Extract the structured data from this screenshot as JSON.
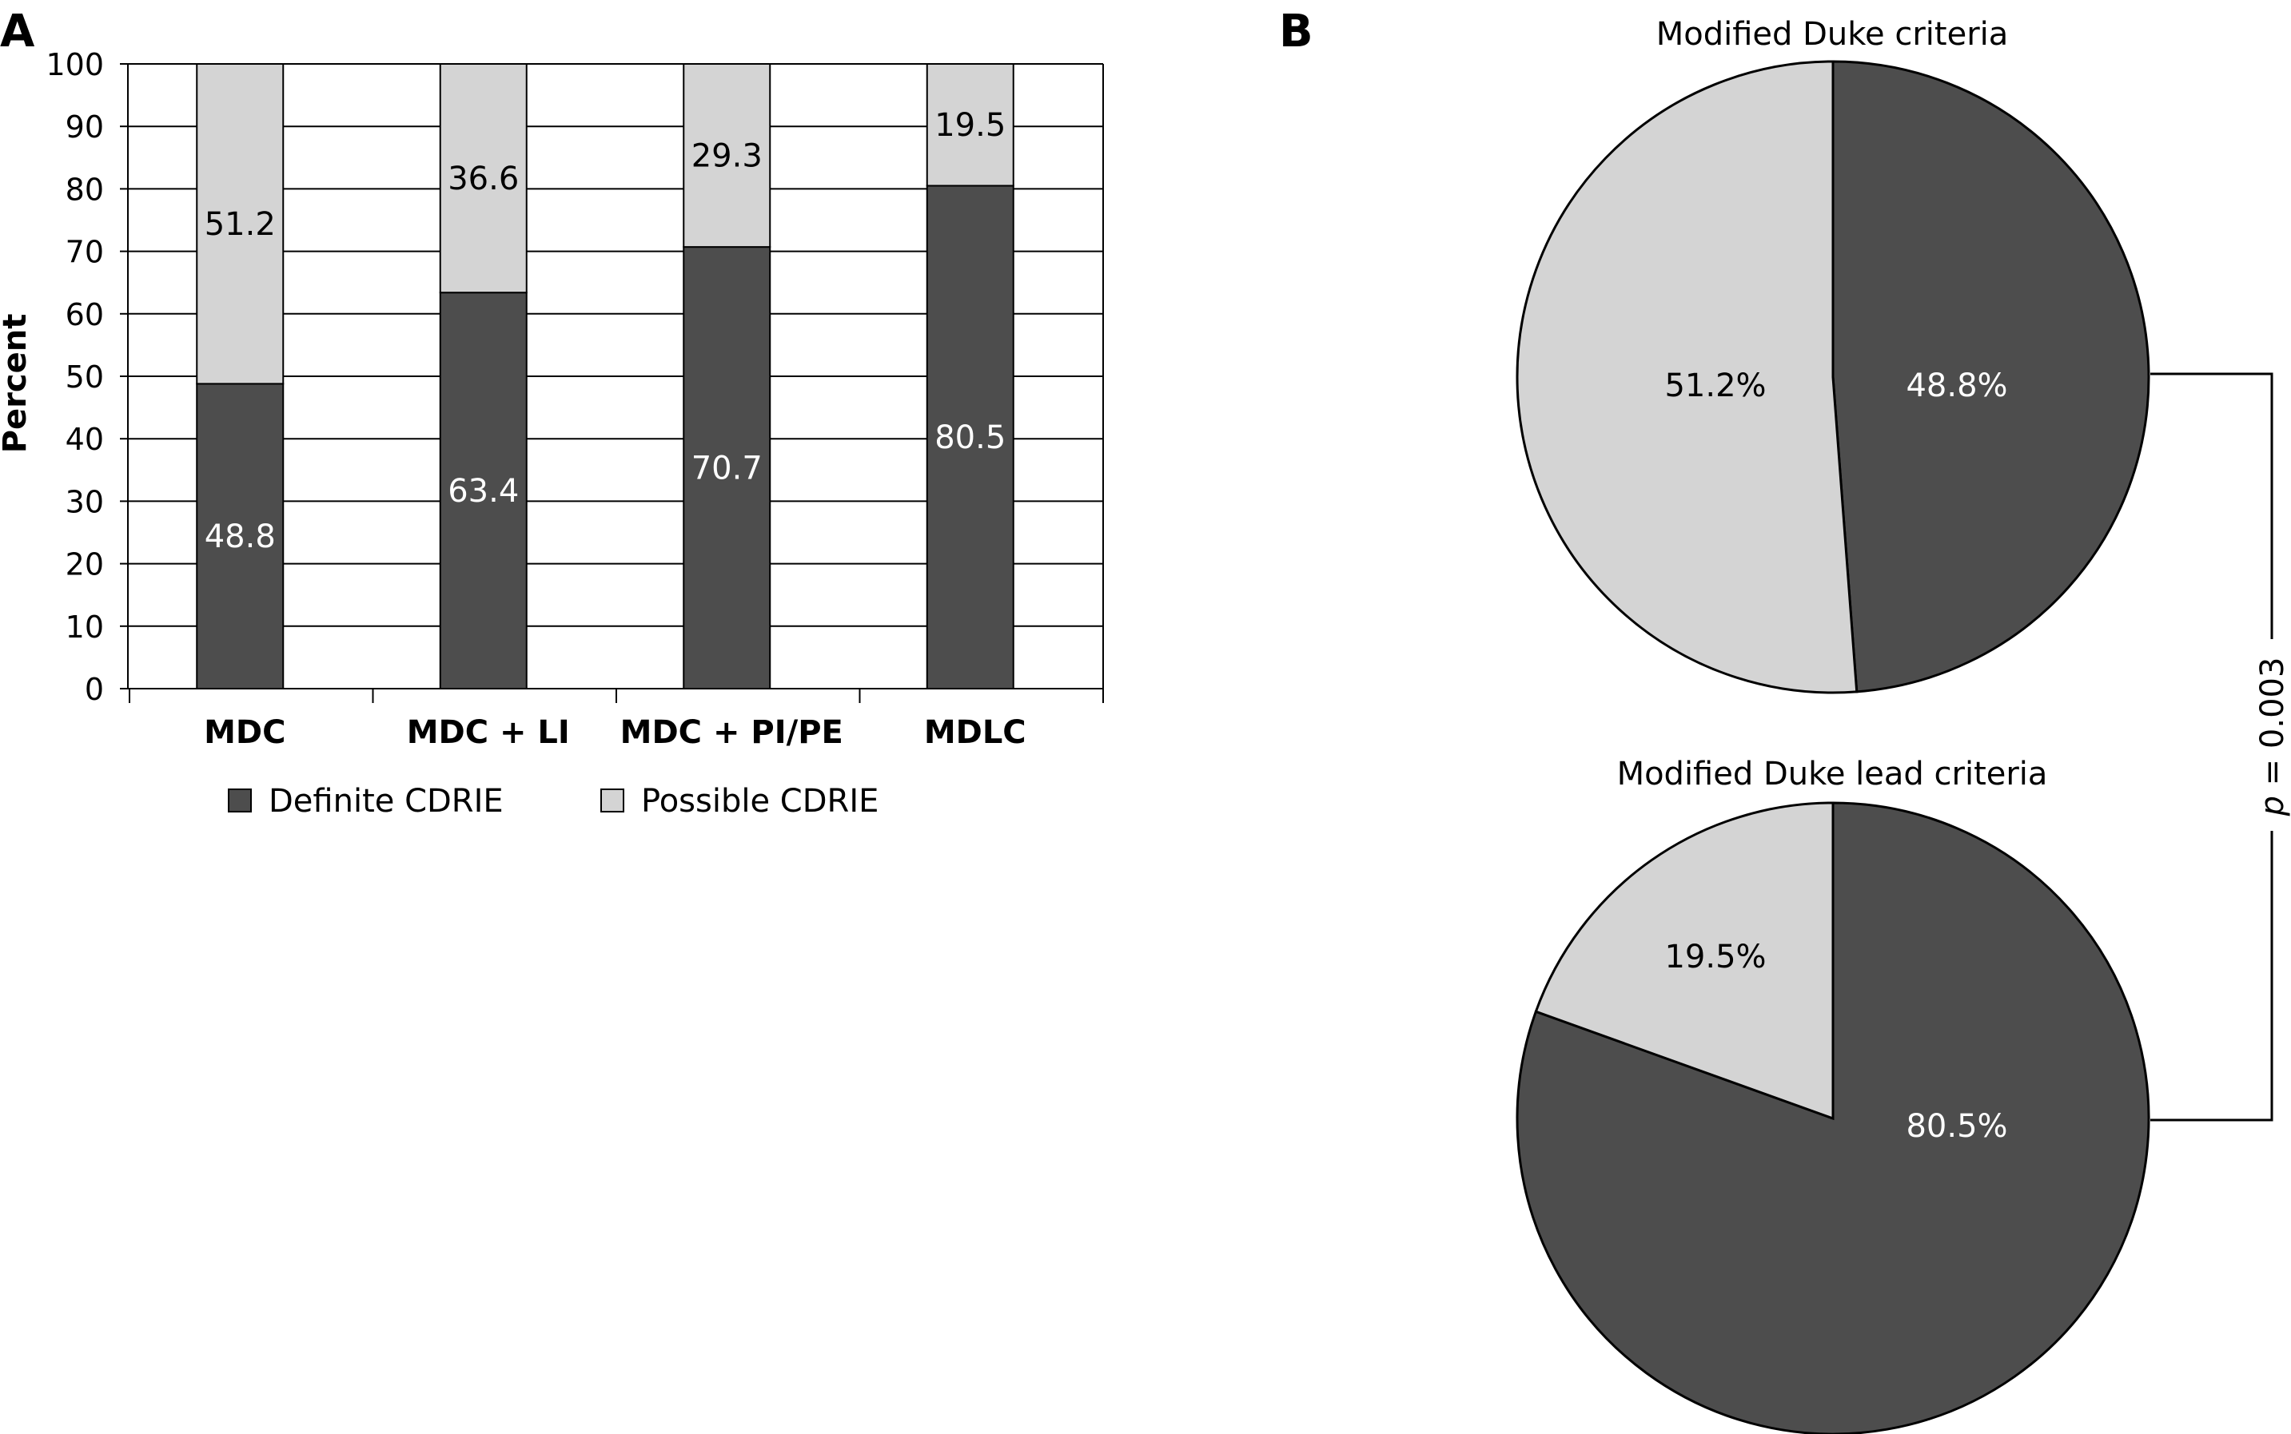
{
  "panels": {
    "a_label": "A",
    "b_label": "B"
  },
  "colors": {
    "definite": "#4d4d4d",
    "possible": "#d4d4d4",
    "grid": "#000000"
  },
  "chart_data": [
    {
      "type": "bar",
      "stacked": true,
      "title": "",
      "xlabel": "",
      "ylabel": "Percent",
      "ylim": [
        0,
        100
      ],
      "yticks": [
        0,
        10,
        20,
        30,
        40,
        50,
        60,
        70,
        80,
        90,
        100
      ],
      "grid": true,
      "categories": [
        "MDC",
        "MDC + LI",
        "MDC + PI/PE",
        "MDLC"
      ],
      "series": [
        {
          "name": "Definite CDRIE",
          "values": [
            48.8,
            63.4,
            70.7,
            80.5
          ],
          "labels": [
            "48.8",
            "63.4",
            "70.7",
            "80.5"
          ]
        },
        {
          "name": "Possible CDRIE",
          "values": [
            51.2,
            36.6,
            29.3,
            19.5
          ],
          "labels": [
            "51.2",
            "36.6",
            "29.3",
            "19.5"
          ]
        }
      ],
      "legend": "bottom"
    },
    {
      "type": "pie",
      "title": "Modified Duke criteria",
      "slices": [
        {
          "name": "Definite CDRIE",
          "value": 48.8,
          "label": "48.8%"
        },
        {
          "name": "Possible CDRIE",
          "value": 51.2,
          "label": "51.2%"
        }
      ]
    },
    {
      "type": "pie",
      "title": "Modified Duke lead criteria",
      "slices": [
        {
          "name": "Definite CDRIE",
          "value": 80.5,
          "label": "80.5%"
        },
        {
          "name": "Possible CDRIE",
          "value": 19.5,
          "label": "19.5%"
        }
      ]
    }
  ],
  "comparison": {
    "p_prefix": "p",
    "p_rest": " = 0.003"
  }
}
